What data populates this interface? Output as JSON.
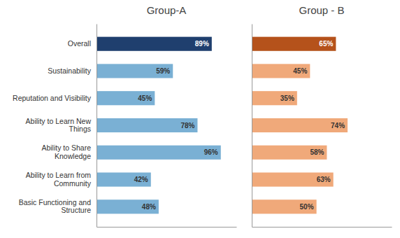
{
  "chart_data": [
    {
      "type": "bar",
      "orientation": "horizontal",
      "title": "Group-A",
      "categories": [
        "Overall",
        "Sustainability",
        "Reputation and Visibility",
        "Ability to Learn New\nThings",
        "Ability to Share\nKnowledge",
        "Ability to Learn from\nCommunity",
        "Basic Functioning and\nStructure"
      ],
      "values": [
        89,
        59,
        45,
        78,
        96,
        42,
        48
      ],
      "value_labels": [
        "89%",
        "59%",
        "45%",
        "78%",
        "96%",
        "42%",
        "48%"
      ],
      "colors": [
        "#1f3f6e",
        "#7ab0d4",
        "#7ab0d4",
        "#7ab0d4",
        "#7ab0d4",
        "#7ab0d4",
        "#7ab0d4"
      ],
      "xlim": [
        0,
        108
      ],
      "data_labels": true,
      "tick_labels": "y",
      "grid": false
    },
    {
      "type": "bar",
      "orientation": "horizontal",
      "title": "Group - B",
      "categories": [
        null,
        null,
        null,
        null,
        null,
        null,
        null
      ],
      "values": [
        65,
        45,
        35,
        74,
        58,
        63,
        50
      ],
      "value_labels": [
        "65%",
        "45%",
        "35%",
        "74%",
        "58%",
        "63%",
        "50%"
      ],
      "colors": [
        "#b5521b",
        "#f0a97a",
        "#f0a97a",
        "#f0a97a",
        "#f0a97a",
        "#f0a97a",
        "#f0a97a"
      ],
      "xlim": [
        0,
        108
      ],
      "data_labels": true,
      "tick_labels": false,
      "grid": false
    }
  ]
}
